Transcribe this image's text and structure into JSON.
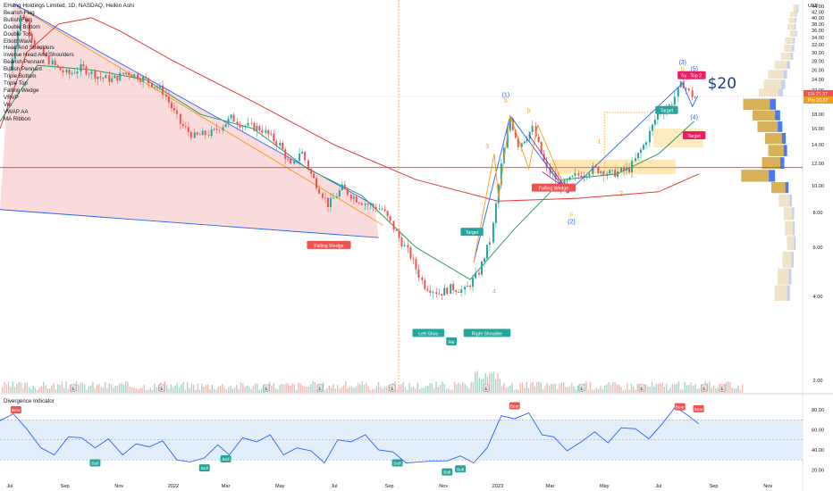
{
  "legend": {
    "title": "EHang Holdings Limited, 1D, NASDAQ, Heikin Ashi",
    "items": [
      "Bearish Flag",
      "Bullish Flag",
      "Double Bottom",
      "Double Top",
      "Elliott Wave",
      "Head And Shoulders",
      "Inverse Head And Shoulders",
      "Bearish Pennant",
      "Bullish Pennant",
      "Triple Bottom",
      "Triple Top",
      "Falling Wedge",
      "VRVP",
      "Vol",
      "VWAP AA",
      "MA Ribbon"
    ]
  },
  "indicator_title": "Divergence Indicator",
  "currency": "USD",
  "colors": {
    "up": "#26a69a",
    "down": "#ef5350",
    "wedge_fill": "#f8c8c8",
    "wedge_line": "#2962ff",
    "ma_green": "#2e9e5e",
    "ma_red": "#e53935",
    "orange": "#f59d1c",
    "blue": "#2962ff",
    "rsi": "#2962ff",
    "rsi_band": "#e3eefb"
  },
  "chart_data": [
    {
      "type": "candlestick",
      "scale": "log",
      "yticks": [
        "44.00",
        "42.00",
        "40.00",
        "38.00",
        "36.00",
        "34.00",
        "32.00",
        "30.00",
        "28.00",
        "26.00",
        "24.00",
        "22.00",
        "20.00",
        "18.00",
        "16.00",
        "14.00",
        "12.00",
        "10.00",
        "8.00",
        "6.00",
        "4.00",
        "2.00"
      ],
      "ylim": [
        1.8,
        50
      ],
      "xticks": [
        "Jul",
        "Sep",
        "Nov",
        "2022",
        "Mar",
        "May",
        "Jul",
        "Sep",
        "Nov",
        "2023",
        "Mar",
        "May",
        "Jul",
        "Sep",
        "Nov"
      ],
      "price_labels": [
        {
          "text": "EH",
          "value": "21.37",
          "color": "#ef5350",
          "price": 21.37
        },
        {
          "text": "",
          "value": "20.46",
          "color": "#ef5350",
          "price": 20.46
        },
        {
          "text": "Pro",
          "value": "20.27",
          "color": "#f59d1c",
          "price": 20.27
        }
      ],
      "key_points": [
        {
          "date": "2021-07-01",
          "price": 26
        },
        {
          "date": "2021-07-15",
          "price": 42
        },
        {
          "date": "2021-08-01",
          "price": 31
        },
        {
          "date": "2021-08-20",
          "price": 27
        },
        {
          "date": "2021-09-05",
          "price": 25
        },
        {
          "date": "2021-09-20",
          "price": 26.5
        },
        {
          "date": "2021-10-10",
          "price": 24.5
        },
        {
          "date": "2021-10-25",
          "price": 24
        },
        {
          "date": "2021-11-10",
          "price": 25.5
        },
        {
          "date": "2021-12-01",
          "price": 24
        },
        {
          "date": "2021-12-20",
          "price": 22
        },
        {
          "date": "2022-01-10",
          "price": 16.5
        },
        {
          "date": "2022-01-25",
          "price": 15
        },
        {
          "date": "2022-02-15",
          "price": 15.5
        },
        {
          "date": "2022-03-08",
          "price": 17.5
        },
        {
          "date": "2022-03-20",
          "price": 16.5
        },
        {
          "date": "2022-04-10",
          "price": 16
        },
        {
          "date": "2022-05-01",
          "price": 14
        },
        {
          "date": "2022-05-15",
          "price": 11.5
        },
        {
          "date": "2022-05-25",
          "price": 13.5
        },
        {
          "date": "2022-06-05",
          "price": 11
        },
        {
          "date": "2022-06-25",
          "price": 8.5
        },
        {
          "date": "2022-07-10",
          "price": 9.8
        },
        {
          "date": "2022-07-25",
          "price": 9
        },
        {
          "date": "2022-08-10",
          "price": 8.5
        },
        {
          "date": "2022-08-25",
          "price": 8.2
        },
        {
          "date": "2022-09-10",
          "price": 6.7
        },
        {
          "date": "2022-09-25",
          "price": 5.6
        },
        {
          "date": "2022-10-10",
          "price": 4.4
        },
        {
          "date": "2022-10-28",
          "price": 4.1
        },
        {
          "date": "2022-11-10",
          "price": 4.3
        },
        {
          "date": "2022-11-25",
          "price": 4.2
        },
        {
          "date": "2022-12-10",
          "price": 4.8
        },
        {
          "date": "2022-12-25",
          "price": 6.5
        },
        {
          "date": "2023-01-05",
          "price": 11.5
        },
        {
          "date": "2023-01-15",
          "price": 17.5
        },
        {
          "date": "2023-01-25",
          "price": 14
        },
        {
          "date": "2023-02-10",
          "price": 16
        },
        {
          "date": "2023-02-25",
          "price": 11.5
        },
        {
          "date": "2023-03-15",
          "price": 10
        },
        {
          "date": "2023-03-30",
          "price": 10.8
        },
        {
          "date": "2023-04-20",
          "price": 11.5
        },
        {
          "date": "2023-05-10",
          "price": 11
        },
        {
          "date": "2023-05-30",
          "price": 11.5
        },
        {
          "date": "2023-06-15",
          "price": 14
        },
        {
          "date": "2023-06-30",
          "price": 18
        },
        {
          "date": "2023-07-15",
          "price": 19.5
        },
        {
          "date": "2023-07-28",
          "price": 23.5
        },
        {
          "date": "2023-08-05",
          "price": 21.5
        },
        {
          "date": "2023-08-12",
          "price": 20.5
        }
      ],
      "ma_green": [
        {
          "date": "2021-06-20",
          "price": 17
        },
        {
          "date": "2021-08-01",
          "price": 27
        },
        {
          "date": "2021-10-01",
          "price": 26
        },
        {
          "date": "2021-12-01",
          "price": 24
        },
        {
          "date": "2022-02-01",
          "price": 18
        },
        {
          "date": "2022-04-01",
          "price": 16
        },
        {
          "date": "2022-06-01",
          "price": 11.5
        },
        {
          "date": "2022-08-01",
          "price": 9.2
        },
        {
          "date": "2022-10-01",
          "price": 6
        },
        {
          "date": "2022-12-01",
          "price": 4.6
        },
        {
          "date": "2023-01-20",
          "price": 7
        },
        {
          "date": "2023-03-15",
          "price": 10.5
        },
        {
          "date": "2023-05-15",
          "price": 11
        },
        {
          "date": "2023-07-01",
          "price": 13
        },
        {
          "date": "2023-08-10",
          "price": 17
        }
      ],
      "ma_red": [
        {
          "date": "2021-06-20",
          "price": 16
        },
        {
          "date": "2021-07-20",
          "price": 30
        },
        {
          "date": "2021-08-25",
          "price": 38
        },
        {
          "date": "2021-10-01",
          "price": 40
        },
        {
          "date": "2021-11-01",
          "price": 36
        },
        {
          "date": "2022-01-01",
          "price": 28
        },
        {
          "date": "2022-04-01",
          "price": 20
        },
        {
          "date": "2022-07-01",
          "price": 14
        },
        {
          "date": "2022-10-01",
          "price": 10.5
        },
        {
          "date": "2023-01-01",
          "price": 8.8
        },
        {
          "date": "2023-04-01",
          "price": 9
        },
        {
          "date": "2023-07-01",
          "price": 9.5
        },
        {
          "date": "2023-08-15",
          "price": 11
        }
      ],
      "wedge": {
        "top_start": {
          "date": "2021-07-05",
          "price": 45
        },
        "top_end": {
          "date": "2022-08-15",
          "price": 8.5
        },
        "bot_start": {
          "date": "2021-06-20",
          "price": 8.2
        },
        "bot_end": {
          "date": "2022-08-20",
          "price": 6.5
        }
      },
      "annotations": [
        {
          "text": "Falling Wedge",
          "date": "2022-06-25",
          "price": 6.1,
          "color": "#ef5350"
        },
        {
          "text": "Target",
          "date": "2022-12-03",
          "price": 6.8,
          "color": "#26a69a"
        },
        {
          "text": "Left Shou",
          "date": "2022-10-15",
          "price": 2.95,
          "color": "#26a69a"
        },
        {
          "text": "He",
          "date": "2022-11-10",
          "price": 2.75,
          "color": "#26a69a"
        },
        {
          "text": "Right Shoulder",
          "date": "2022-12-20",
          "price": 2.95,
          "color": "#26a69a"
        },
        {
          "text": "Falling Wedge",
          "date": "2023-03-05",
          "price": 9.8,
          "color": "#ef5350"
        },
        {
          "text": "Target",
          "date": "2023-07-10",
          "price": 18.6,
          "color": "#26a69a"
        },
        {
          "text": "Top",
          "date": "2023-07-30",
          "price": 24.8,
          "color": "#e91e63"
        },
        {
          "text": "Top 2",
          "date": "2023-08-12",
          "price": 24.8,
          "color": "#e91e63"
        },
        {
          "text": "Target",
          "date": "2023-08-10",
          "price": 15.1,
          "color": "#e91e63"
        }
      ],
      "wave_labels": [
        {
          "text": "(1)",
          "date": "2023-01-10",
          "price": 20.8,
          "color": "#2962ff"
        },
        {
          "text": "5",
          "date": "2023-01-10",
          "price": 19.8,
          "color": "#f59d1c"
        },
        {
          "text": "b",
          "date": "2023-02-05",
          "price": 18.3,
          "color": "#f59d1c"
        },
        {
          "text": "3",
          "date": "2022-12-20",
          "price": 13.6,
          "color": "#f59d1c"
        },
        {
          "text": "4",
          "date": "2022-12-28",
          "price": 4.1,
          "color": "#f59d1c"
        },
        {
          "text": "1",
          "date": "2023-04-25",
          "price": 14.2,
          "color": "#f59d1c"
        },
        {
          "text": "2",
          "date": "2023-05-20",
          "price": 9.2,
          "color": "#f59d1c"
        },
        {
          "text": "c",
          "date": "2023-03-25",
          "price": 7.8,
          "color": "#f59d1c"
        },
        {
          "text": "(2)",
          "date": "2023-03-25",
          "price": 7.3,
          "color": "#2962ff"
        },
        {
          "text": "(3)",
          "date": "2023-07-28",
          "price": 27.2,
          "color": "#2962ff"
        },
        {
          "text": "5",
          "date": "2023-07-28",
          "price": 25.8,
          "color": "#f59d1c"
        },
        {
          "text": "(5)",
          "date": "2023-08-10",
          "price": 25.8,
          "color": "#2962ff"
        },
        {
          "text": "(4)",
          "date": "2023-08-10",
          "price": 17.3,
          "color": "#2962ff"
        }
      ],
      "big_label": {
        "text": "$20",
        "date": "2023-08-25",
        "price": 22.3,
        "color": "#1e3a8a"
      },
      "hlines": [
        {
          "price": 11.6,
          "color": "#e53935"
        }
      ],
      "volume_profile": [
        {
          "price": 43,
          "value": 0.15
        },
        {
          "price": 41,
          "value": 0.2
        },
        {
          "price": 39,
          "value": 0.22
        },
        {
          "price": 37,
          "value": 0.24
        },
        {
          "price": 35,
          "value": 0.2
        },
        {
          "price": 33,
          "value": 0.28
        },
        {
          "price": 31,
          "value": 0.3
        },
        {
          "price": 29,
          "value": 0.34
        },
        {
          "price": 27,
          "value": 0.45
        },
        {
          "price": 25,
          "value": 0.55
        },
        {
          "price": 23,
          "value": 0.62
        },
        {
          "price": 21.5,
          "value": 0.7
        },
        {
          "price": 19.5,
          "value": 0.95
        },
        {
          "price": 17.8,
          "value": 0.8
        },
        {
          "price": 16.2,
          "value": 0.72
        },
        {
          "price": 14.7,
          "value": 0.6
        },
        {
          "price": 13.3,
          "value": 0.55
        },
        {
          "price": 12,
          "value": 0.65
        },
        {
          "price": 10.8,
          "value": 0.98
        },
        {
          "price": 9.8,
          "value": 0.5
        },
        {
          "price": 8.8,
          "value": 0.38
        },
        {
          "price": 7.9,
          "value": 0.3
        },
        {
          "price": 7,
          "value": 0.28
        },
        {
          "price": 6.2,
          "value": 0.25
        },
        {
          "price": 5.4,
          "value": 0.32
        },
        {
          "price": 4.7,
          "value": 0.4
        },
        {
          "price": 4.1,
          "value": 0.45
        }
      ]
    },
    {
      "type": "line",
      "name": "Divergence Indicator",
      "yticks": [
        "80.00",
        "60.00",
        "40.00",
        "20.00"
      ],
      "ylim": [
        15,
        88
      ],
      "band": [
        30,
        70
      ],
      "x_dates": [
        "2021-06-20",
        "2021-07-05",
        "2021-07-20",
        "2021-08-05",
        "2021-08-20",
        "2021-09-05",
        "2021-09-20",
        "2021-10-05",
        "2021-10-20",
        "2021-11-05",
        "2021-11-20",
        "2021-12-05",
        "2021-12-20",
        "2022-01-05",
        "2022-01-20",
        "2022-02-05",
        "2022-02-20",
        "2022-03-05",
        "2022-03-20",
        "2022-04-05",
        "2022-04-20",
        "2022-05-05",
        "2022-05-20",
        "2022-06-05",
        "2022-06-20",
        "2022-07-05",
        "2022-07-20",
        "2022-08-05",
        "2022-08-20",
        "2022-09-05",
        "2022-09-20",
        "2022-10-05",
        "2022-10-20",
        "2022-11-05",
        "2022-11-20",
        "2022-12-05",
        "2022-12-20",
        "2023-01-05",
        "2023-01-20",
        "2023-02-05",
        "2023-02-20",
        "2023-03-05",
        "2023-03-20",
        "2023-04-05",
        "2023-04-20",
        "2023-05-05",
        "2023-05-20",
        "2023-06-05",
        "2023-06-20",
        "2023-07-05",
        "2023-07-20",
        "2023-08-05",
        "2023-08-15"
      ],
      "values": [
        72,
        76,
        58,
        45,
        35,
        50,
        55,
        42,
        48,
        38,
        46,
        40,
        52,
        30,
        25,
        35,
        45,
        32,
        55,
        48,
        52,
        38,
        42,
        36,
        30,
        50,
        45,
        58,
        40,
        35,
        30,
        28,
        26,
        32,
        34,
        24,
        45,
        74,
        68,
        80,
        55,
        50,
        42,
        48,
        55,
        50,
        62,
        58,
        54,
        66,
        80,
        76,
        66
      ],
      "signals": [
        {
          "text": "Bear",
          "date": "2021-07-08",
          "value": 80,
          "color": "#ef5350"
        },
        {
          "text": "Bull",
          "date": "2021-10-05",
          "value": 27,
          "color": "#26a69a"
        },
        {
          "text": "Bull",
          "date": "2022-02-05",
          "value": 22,
          "color": "#26a69a"
        },
        {
          "text": "Bull",
          "date": "2022-03-01",
          "value": 31,
          "color": "#26a69a"
        },
        {
          "text": "Bull",
          "date": "2022-09-10",
          "value": 27,
          "color": "#26a69a"
        },
        {
          "text": "Bull",
          "date": "2022-11-05",
          "value": 18,
          "color": "#26a69a"
        },
        {
          "text": "Bull",
          "date": "2022-11-20",
          "value": 21,
          "color": "#26a69a"
        },
        {
          "text": "Bear",
          "date": "2023-01-20",
          "value": 84,
          "color": "#ef5350"
        },
        {
          "text": "Bear",
          "date": "2023-07-25",
          "value": 83,
          "color": "#ef5350"
        },
        {
          "text": "Bear",
          "date": "2023-08-15",
          "value": 81,
          "color": "#ef5350"
        }
      ]
    }
  ]
}
